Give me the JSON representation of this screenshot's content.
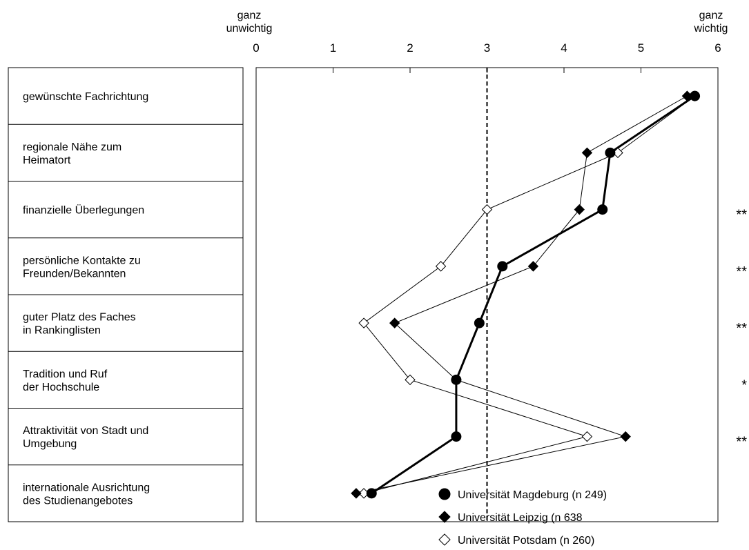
{
  "chart_data": {
    "type": "line",
    "x_axis": {
      "min": 0,
      "max": 6,
      "ticks": [
        "0",
        "1",
        "2",
        "3",
        "4",
        "5",
        "6"
      ],
      "left_label": [
        "ganz",
        "unwichtig"
      ],
      "right_label": [
        "ganz",
        "wichtig"
      ],
      "reference_value": 3
    },
    "categories": [
      {
        "lines": [
          "gewünschte Fachrichtung"
        ],
        "sig": ""
      },
      {
        "lines": [
          "regionale Nähe zum",
          "Heimatort"
        ],
        "sig": ""
      },
      {
        "lines": [
          "finanzielle Überlegungen"
        ],
        "sig": "**"
      },
      {
        "lines": [
          "persönliche Kontakte zu",
          "Freunden/Bekannten"
        ],
        "sig": "**"
      },
      {
        "lines": [
          "guter Platz des Faches",
          "in Rankinglisten"
        ],
        "sig": "**"
      },
      {
        "lines": [
          "Tradition und Ruf",
          "der Hochschule"
        ],
        "sig": "*"
      },
      {
        "lines": [
          "Attraktivität von Stadt und",
          "Umgebung"
        ],
        "sig": "**"
      },
      {
        "lines": [
          "internationale Ausrichtung",
          "des Studienangebotes"
        ],
        "sig": ""
      }
    ],
    "series": [
      {
        "name": "Universität Magdeburg (n 249)",
        "marker": "circle",
        "color": "#000000",
        "values": [
          5.7,
          4.6,
          4.5,
          3.2,
          2.9,
          2.6,
          2.6,
          1.5
        ]
      },
      {
        "name": "Universität Leipzig (n 638",
        "marker": "diamond",
        "color": "#000000",
        "values": [
          5.6,
          4.3,
          4.2,
          3.6,
          1.8,
          2.6,
          4.8,
          1.3
        ]
      },
      {
        "name": "Universität Potsdam (n 260)",
        "marker": "diamond-open",
        "color": "#000000",
        "values": [
          5.7,
          4.7,
          3.0,
          2.4,
          1.4,
          2.0,
          4.3,
          1.4
        ]
      }
    ]
  }
}
